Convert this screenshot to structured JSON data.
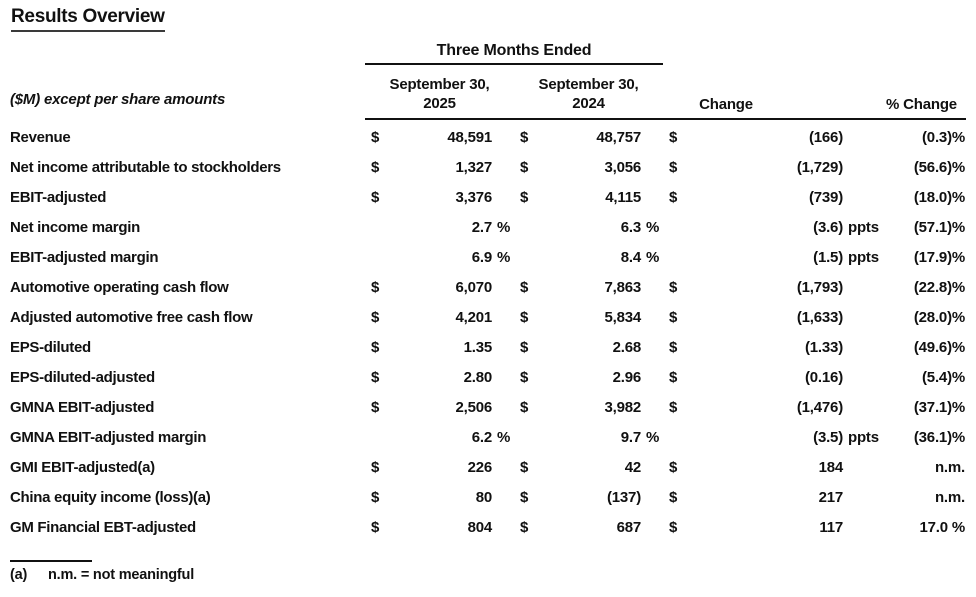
{
  "page": {
    "title": "Results Overview"
  },
  "table": {
    "unit_note": "($M) except per share amounts",
    "period_header": "Three Months Ended",
    "columns": {
      "col_2025_line1": "September 30,",
      "col_2025_line2": "2025",
      "col_2024_line1": "September 30,",
      "col_2024_line2": "2024",
      "change": "Change",
      "pct_change": "% Change"
    },
    "rows": [
      {
        "label": "Revenue",
        "cur1": "$",
        "val1": "48,591",
        "suf1": "",
        "cur2": "$",
        "val2": "48,757",
        "suf2": "",
        "cur3": "$",
        "val3": "(166)",
        "suf3": "",
        "pct": "(0.3)%"
      },
      {
        "label": "Net income attributable to stockholders",
        "cur1": "$",
        "val1": "1,327",
        "suf1": "",
        "cur2": "$",
        "val2": "3,056",
        "suf2": "",
        "cur3": "$",
        "val3": "(1,729)",
        "suf3": "",
        "pct": "(56.6)%"
      },
      {
        "label": "EBIT-adjusted",
        "cur1": "$",
        "val1": "3,376",
        "suf1": "",
        "cur2": "$",
        "val2": "4,115",
        "suf2": "",
        "cur3": "$",
        "val3": "(739)",
        "suf3": "",
        "pct": "(18.0)%"
      },
      {
        "label": "Net income margin",
        "cur1": "",
        "val1": "2.7",
        "suf1": "%",
        "cur2": "",
        "val2": "6.3",
        "suf2": "%",
        "cur3": "",
        "val3": "(3.6)",
        "suf3": "ppts",
        "pct": "(57.1)%"
      },
      {
        "label": "EBIT-adjusted margin",
        "cur1": "",
        "val1": "6.9",
        "suf1": "%",
        "cur2": "",
        "val2": "8.4",
        "suf2": "%",
        "cur3": "",
        "val3": "(1.5)",
        "suf3": "ppts",
        "pct": "(17.9)%"
      },
      {
        "label": "Automotive operating cash flow",
        "cur1": "$",
        "val1": "6,070",
        "suf1": "",
        "cur2": "$",
        "val2": "7,863",
        "suf2": "",
        "cur3": "$",
        "val3": "(1,793)",
        "suf3": "",
        "pct": "(22.8)%"
      },
      {
        "label": "Adjusted automotive free cash flow",
        "cur1": "$",
        "val1": "4,201",
        "suf1": "",
        "cur2": "$",
        "val2": "5,834",
        "suf2": "",
        "cur3": "$",
        "val3": "(1,633)",
        "suf3": "",
        "pct": "(28.0)%"
      },
      {
        "label": "EPS-diluted",
        "cur1": "$",
        "val1": "1.35",
        "suf1": "",
        "cur2": "$",
        "val2": "2.68",
        "suf2": "",
        "cur3": "$",
        "val3": "(1.33)",
        "suf3": "",
        "pct": "(49.6)%"
      },
      {
        "label": "EPS-diluted-adjusted",
        "cur1": "$",
        "val1": "2.80",
        "suf1": "",
        "cur2": "$",
        "val2": "2.96",
        "suf2": "",
        "cur3": "$",
        "val3": "(0.16)",
        "suf3": "",
        "pct": "(5.4)%"
      },
      {
        "label": "GMNA EBIT-adjusted",
        "cur1": "$",
        "val1": "2,506",
        "suf1": "",
        "cur2": "$",
        "val2": "3,982",
        "suf2": "",
        "cur3": "$",
        "val3": "(1,476)",
        "suf3": "",
        "pct": "(37.1)%"
      },
      {
        "label": "GMNA EBIT-adjusted margin",
        "cur1": "",
        "val1": "6.2",
        "suf1": "%",
        "cur2": "",
        "val2": "9.7",
        "suf2": "%",
        "cur3": "",
        "val3": "(3.5)",
        "suf3": "ppts",
        "pct": "(36.1)%"
      },
      {
        "label": "GMI EBIT-adjusted(a)",
        "cur1": "$",
        "val1": "226",
        "suf1": "",
        "cur2": "$",
        "val2": "42",
        "suf2": "",
        "cur3": "$",
        "val3": "184",
        "suf3": "",
        "pct": "n.m."
      },
      {
        "label": "China equity income (loss)(a)",
        "cur1": "$",
        "val1": "80",
        "suf1": "",
        "cur2": "$",
        "val2": "(137)",
        "suf2": "",
        "cur3": "$",
        "val3": "217",
        "suf3": "",
        "pct": "n.m."
      },
      {
        "label": "GM Financial EBT-adjusted",
        "cur1": "$",
        "val1": "804",
        "suf1": "",
        "cur2": "$",
        "val2": "687",
        "suf2": "",
        "cur3": "$",
        "val3": "117",
        "suf3": "",
        "pct": "17.0 %"
      }
    ]
  },
  "footnote": {
    "marker": "(a)",
    "text": "n.m. = not meaningful"
  },
  "colors": {
    "text": "#111111",
    "background": "#ffffff"
  }
}
